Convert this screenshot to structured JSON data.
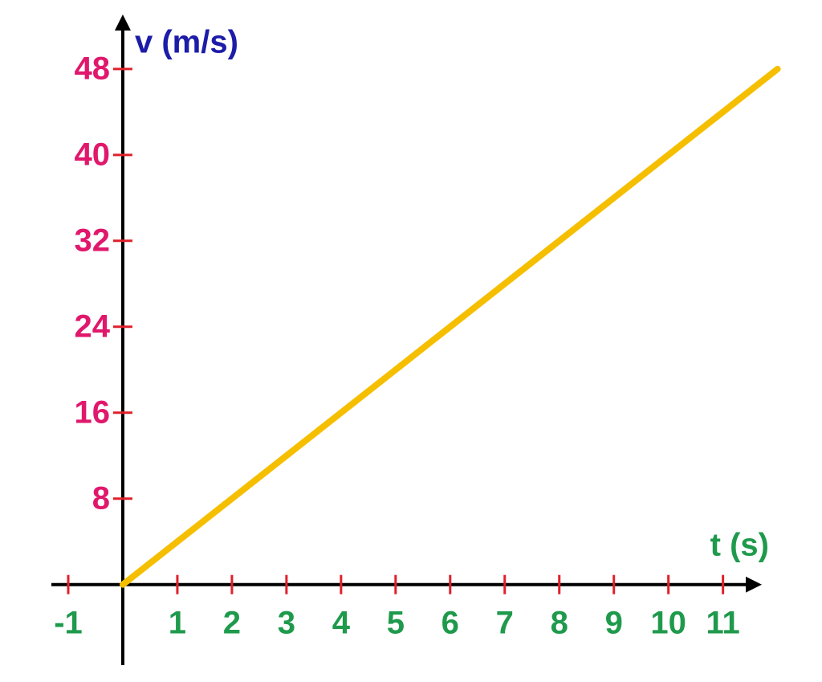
{
  "chart_data": {
    "type": "line",
    "x_label": "t (s)",
    "y_label": "v (m/s)",
    "x": [
      0,
      12
    ],
    "values": [
      0,
      48
    ],
    "color": "#f5bf00",
    "xlim": [
      -1.3,
      12.3
    ],
    "ylim": [
      -7.5,
      53
    ],
    "xticks": [
      -1,
      1,
      2,
      3,
      4,
      5,
      6,
      7,
      8,
      9,
      10,
      11
    ],
    "yticks": [
      8,
      16,
      24,
      32,
      40,
      48
    ],
    "x_label_color": "#1f9a4c",
    "y_label_color": "#1c1ca8",
    "xtick_label_color": "#1f9a4c",
    "ytick_label_color": "#e0186c",
    "tick_mark_color": "#e0202a"
  }
}
